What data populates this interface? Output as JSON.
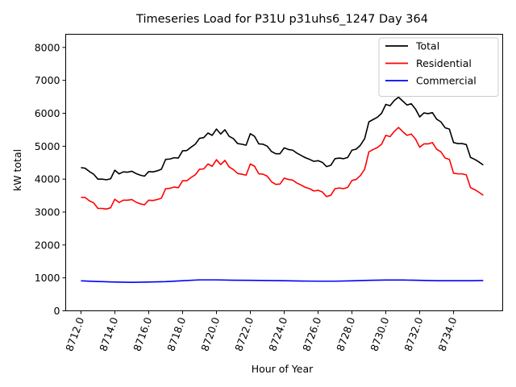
{
  "chart_data": {
    "type": "line",
    "title": "Timeseries Load for P31U p31uhs6_1247  Day 364",
    "xlabel": "Hour of Year",
    "ylabel": "kW total",
    "xlim": [
      8711.1,
      8736.9
    ],
    "ylim": [
      0,
      8400
    ],
    "x_ticks": [
      8712,
      8714,
      8716,
      8718,
      8720,
      8722,
      8724,
      8726,
      8728,
      8730,
      8732,
      8734
    ],
    "x_tick_labels": [
      "8712.0",
      "8714.0",
      "8716.0",
      "8718.0",
      "8720.0",
      "8722.0",
      "8724.0",
      "8726.0",
      "8728.0",
      "8730.0",
      "8732.0",
      "8734.0"
    ],
    "y_ticks": [
      0,
      1000,
      2000,
      3000,
      4000,
      5000,
      6000,
      7000,
      8000
    ],
    "y_tick_labels": [
      "0",
      "1000",
      "2000",
      "3000",
      "4000",
      "5000",
      "6000",
      "7000",
      "8000"
    ],
    "grid": false,
    "legend_position": "top-right",
    "series": [
      {
        "name": "Total",
        "color": "#000000",
        "points": [
          [
            8712.0,
            4350
          ],
          [
            8712.25,
            4330
          ],
          [
            8712.5,
            4230
          ],
          [
            8712.75,
            4150
          ],
          [
            8713.0,
            4000
          ],
          [
            8713.25,
            4000
          ],
          [
            8713.5,
            3980
          ],
          [
            8713.75,
            4010
          ],
          [
            8714.0,
            4270
          ],
          [
            8714.25,
            4160
          ],
          [
            8714.5,
            4220
          ],
          [
            8714.75,
            4210
          ],
          [
            8715.0,
            4240
          ],
          [
            8715.25,
            4170
          ],
          [
            8715.5,
            4120
          ],
          [
            8715.75,
            4090
          ],
          [
            8716.0,
            4230
          ],
          [
            8716.25,
            4220
          ],
          [
            8716.5,
            4250
          ],
          [
            8716.75,
            4300
          ],
          [
            8717.0,
            4600
          ],
          [
            8717.25,
            4610
          ],
          [
            8717.5,
            4650
          ],
          [
            8717.75,
            4640
          ],
          [
            8718.0,
            4860
          ],
          [
            8718.25,
            4870
          ],
          [
            8718.5,
            4970
          ],
          [
            8718.75,
            5060
          ],
          [
            8719.0,
            5240
          ],
          [
            8719.25,
            5260
          ],
          [
            8719.5,
            5400
          ],
          [
            8719.75,
            5330
          ],
          [
            8720.0,
            5520
          ],
          [
            8720.25,
            5370
          ],
          [
            8720.5,
            5500
          ],
          [
            8720.75,
            5300
          ],
          [
            8721.0,
            5230
          ],
          [
            8721.25,
            5080
          ],
          [
            8721.5,
            5060
          ],
          [
            8721.75,
            5030
          ],
          [
            8722.0,
            5380
          ],
          [
            8722.25,
            5300
          ],
          [
            8722.5,
            5070
          ],
          [
            8722.75,
            5060
          ],
          [
            8723.0,
            5000
          ],
          [
            8723.25,
            4840
          ],
          [
            8723.5,
            4770
          ],
          [
            8723.75,
            4770
          ],
          [
            8724.0,
            4950
          ],
          [
            8724.25,
            4900
          ],
          [
            8724.5,
            4880
          ],
          [
            8724.75,
            4790
          ],
          [
            8725.0,
            4720
          ],
          [
            8725.25,
            4650
          ],
          [
            8725.5,
            4600
          ],
          [
            8725.75,
            4540
          ],
          [
            8726.0,
            4560
          ],
          [
            8726.25,
            4510
          ],
          [
            8726.5,
            4380
          ],
          [
            8726.75,
            4420
          ],
          [
            8727.0,
            4620
          ],
          [
            8727.25,
            4640
          ],
          [
            8727.5,
            4620
          ],
          [
            8727.75,
            4660
          ],
          [
            8728.0,
            4880
          ],
          [
            8728.25,
            4910
          ],
          [
            8728.5,
            5030
          ],
          [
            8728.75,
            5230
          ],
          [
            8729.0,
            5740
          ],
          [
            8729.25,
            5810
          ],
          [
            8729.5,
            5880
          ],
          [
            8729.75,
            6000
          ],
          [
            8730.0,
            6270
          ],
          [
            8730.25,
            6230
          ],
          [
            8730.5,
            6390
          ],
          [
            8730.75,
            6490
          ],
          [
            8731.0,
            6370
          ],
          [
            8731.25,
            6250
          ],
          [
            8731.5,
            6290
          ],
          [
            8731.75,
            6130
          ],
          [
            8732.0,
            5890
          ],
          [
            8732.25,
            6010
          ],
          [
            8732.5,
            5990
          ],
          [
            8732.75,
            6020
          ],
          [
            8733.0,
            5820
          ],
          [
            8733.25,
            5740
          ],
          [
            8733.5,
            5560
          ],
          [
            8733.75,
            5520
          ],
          [
            8734.0,
            5110
          ],
          [
            8734.25,
            5080
          ],
          [
            8734.5,
            5080
          ],
          [
            8734.75,
            5050
          ],
          [
            8735.0,
            4660
          ],
          [
            8735.25,
            4600
          ],
          [
            8735.5,
            4520
          ],
          [
            8735.75,
            4430
          ]
        ]
      },
      {
        "name": "Residential",
        "color": "#ff0000",
        "points": [
          [
            8712.0,
            3450
          ],
          [
            8712.25,
            3440
          ],
          [
            8712.5,
            3340
          ],
          [
            8712.75,
            3280
          ],
          [
            8713.0,
            3110
          ],
          [
            8713.25,
            3110
          ],
          [
            8713.5,
            3090
          ],
          [
            8713.75,
            3130
          ],
          [
            8714.0,
            3390
          ],
          [
            8714.25,
            3290
          ],
          [
            8714.5,
            3360
          ],
          [
            8714.75,
            3360
          ],
          [
            8715.0,
            3380
          ],
          [
            8715.25,
            3300
          ],
          [
            8715.5,
            3250
          ],
          [
            8715.75,
            3220
          ],
          [
            8716.0,
            3360
          ],
          [
            8716.25,
            3350
          ],
          [
            8716.5,
            3380
          ],
          [
            8716.75,
            3420
          ],
          [
            8717.0,
            3710
          ],
          [
            8717.25,
            3720
          ],
          [
            8717.5,
            3760
          ],
          [
            8717.75,
            3740
          ],
          [
            8718.0,
            3950
          ],
          [
            8718.25,
            3950
          ],
          [
            8718.5,
            4050
          ],
          [
            8718.75,
            4130
          ],
          [
            8719.0,
            4300
          ],
          [
            8719.25,
            4310
          ],
          [
            8719.5,
            4460
          ],
          [
            8719.75,
            4390
          ],
          [
            8720.0,
            4590
          ],
          [
            8720.25,
            4440
          ],
          [
            8720.5,
            4570
          ],
          [
            8720.75,
            4370
          ],
          [
            8721.0,
            4290
          ],
          [
            8721.25,
            4170
          ],
          [
            8721.5,
            4150
          ],
          [
            8721.75,
            4120
          ],
          [
            8722.0,
            4460
          ],
          [
            8722.25,
            4390
          ],
          [
            8722.5,
            4160
          ],
          [
            8722.75,
            4150
          ],
          [
            8723.0,
            4090
          ],
          [
            8723.25,
            3920
          ],
          [
            8723.5,
            3840
          ],
          [
            8723.75,
            3850
          ],
          [
            8724.0,
            4030
          ],
          [
            8724.25,
            3990
          ],
          [
            8724.5,
            3970
          ],
          [
            8724.75,
            3880
          ],
          [
            8725.0,
            3820
          ],
          [
            8725.25,
            3750
          ],
          [
            8725.5,
            3710
          ],
          [
            8725.75,
            3640
          ],
          [
            8726.0,
            3660
          ],
          [
            8726.25,
            3610
          ],
          [
            8726.5,
            3470
          ],
          [
            8726.75,
            3510
          ],
          [
            8727.0,
            3710
          ],
          [
            8727.25,
            3730
          ],
          [
            8727.5,
            3710
          ],
          [
            8727.75,
            3750
          ],
          [
            8728.0,
            3960
          ],
          [
            8728.25,
            3990
          ],
          [
            8728.5,
            4110
          ],
          [
            8728.75,
            4300
          ],
          [
            8729.0,
            4830
          ],
          [
            8729.25,
            4900
          ],
          [
            8729.5,
            4960
          ],
          [
            8729.75,
            5060
          ],
          [
            8730.0,
            5330
          ],
          [
            8730.25,
            5290
          ],
          [
            8730.5,
            5450
          ],
          [
            8730.75,
            5570
          ],
          [
            8731.0,
            5440
          ],
          [
            8731.25,
            5330
          ],
          [
            8731.5,
            5370
          ],
          [
            8731.75,
            5220
          ],
          [
            8732.0,
            4970
          ],
          [
            8732.25,
            5070
          ],
          [
            8732.5,
            5070
          ],
          [
            8732.75,
            5110
          ],
          [
            8733.0,
            4910
          ],
          [
            8733.25,
            4830
          ],
          [
            8733.5,
            4640
          ],
          [
            8733.75,
            4600
          ],
          [
            8734.0,
            4180
          ],
          [
            8734.25,
            4160
          ],
          [
            8734.5,
            4160
          ],
          [
            8734.75,
            4130
          ],
          [
            8735.0,
            3740
          ],
          [
            8735.25,
            3680
          ],
          [
            8735.5,
            3600
          ],
          [
            8735.75,
            3510
          ]
        ]
      },
      {
        "name": "Commercial",
        "color": "#0000ff",
        "points": [
          [
            8712.0,
            910
          ],
          [
            8713.0,
            890
          ],
          [
            8714.0,
            875
          ],
          [
            8715.0,
            865
          ],
          [
            8716.0,
            875
          ],
          [
            8717.0,
            885
          ],
          [
            8718.0,
            915
          ],
          [
            8719.0,
            940
          ],
          [
            8720.0,
            940
          ],
          [
            8721.0,
            930
          ],
          [
            8722.0,
            925
          ],
          [
            8723.0,
            920
          ],
          [
            8724.0,
            915
          ],
          [
            8725.0,
            905
          ],
          [
            8726.0,
            900
          ],
          [
            8727.0,
            900
          ],
          [
            8728.0,
            910
          ],
          [
            8729.0,
            925
          ],
          [
            8730.0,
            935
          ],
          [
            8731.0,
            935
          ],
          [
            8732.0,
            925
          ],
          [
            8733.0,
            915
          ],
          [
            8734.0,
            915
          ],
          [
            8735.0,
            915
          ],
          [
            8735.75,
            920
          ]
        ]
      }
    ]
  }
}
